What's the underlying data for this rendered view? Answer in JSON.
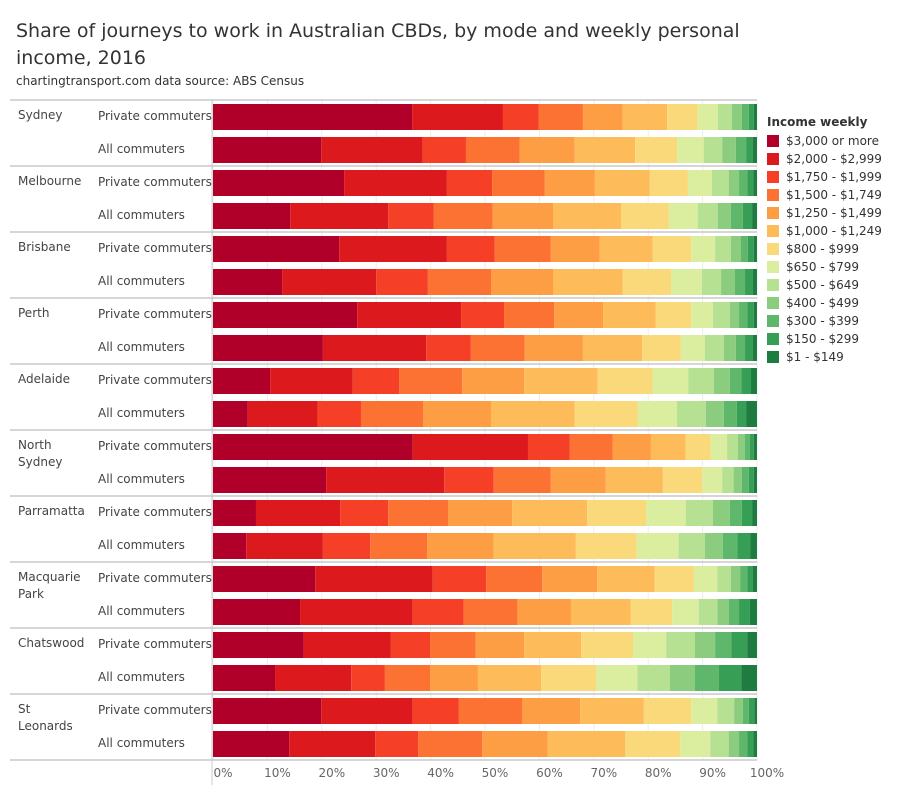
{
  "title": "Share of journeys to work in Australian CBDs, by mode and weekly personal income, 2016",
  "subtitle": "chartingtransport.com  data source: ABS Census",
  "chart_data": {
    "type": "bar",
    "orientation": "horizontal",
    "stacked": "100%",
    "xlim": [
      0,
      100
    ],
    "x_ticks": [
      "0%",
      "10%",
      "20%",
      "30%",
      "40%",
      "50%",
      "60%",
      "70%",
      "80%",
      "90%",
      "100%"
    ],
    "grid": true,
    "legend_title": "Income weekly",
    "legend_position": "right",
    "series_names": [
      "$3,000 or more",
      "$2,000 - $2,999",
      "$1,750 - $1,999",
      "$1,500 - $1,749",
      "$1,250 - $1,499",
      "$1,000 - $1,249",
      "$800 - $999",
      "$650 - $799",
      "$500 - $649",
      "$400 - $499",
      "$300 - $399",
      "$150 - $299",
      "$1 - $149"
    ],
    "colors": [
      "#b0002a",
      "#dc1a1e",
      "#f54027",
      "#fb7232",
      "#fd9d44",
      "#febb59",
      "#fad97a",
      "#dbed9e",
      "#b6e092",
      "#8ccc7e",
      "#5eb76b",
      "#379e55",
      "#1e7c40"
    ],
    "groups": [
      {
        "name": "Sydney",
        "rows": [
          {
            "label": "Private commuters",
            "values": [
              36.6,
              16.7,
              6.6,
              8.1,
              7.3,
              8.2,
              5.6,
              3.7,
              2.6,
              1.8,
              1.3,
              0.9,
              0.6
            ]
          },
          {
            "label": "All commuters",
            "values": [
              19.9,
              18.6,
              8.0,
              9.9,
              10.1,
              11.1,
              7.7,
              4.9,
              3.4,
              2.5,
              1.9,
              1.2,
              0.8
            ]
          }
        ]
      },
      {
        "name": "Melbourne",
        "rows": [
          {
            "label": "Private commuters",
            "values": [
              24.1,
              18.9,
              8.3,
              9.7,
              9.2,
              10.1,
              7.0,
              4.4,
              3.1,
              1.9,
              1.5,
              1.1,
              0.7
            ]
          },
          {
            "label": "All commuters",
            "values": [
              14.2,
              18.0,
              8.4,
              10.8,
              11.1,
              12.5,
              8.8,
              5.3,
              3.7,
              2.4,
              2.2,
              1.7,
              0.9
            ]
          }
        ]
      },
      {
        "name": "Brisbane",
        "rows": [
          {
            "label": "Private commuters",
            "values": [
              23.2,
              19.8,
              8.8,
              10.3,
              9.0,
              9.7,
              7.1,
              4.4,
              2.9,
              1.8,
              1.3,
              1.1,
              0.6
            ]
          },
          {
            "label": "All commuters",
            "values": [
              12.7,
              17.3,
              9.5,
              11.6,
              11.4,
              12.8,
              8.9,
              5.7,
              3.5,
              2.5,
              1.9,
              1.4,
              0.8
            ]
          }
        ]
      },
      {
        "name": "Perth",
        "rows": [
          {
            "label": "Private commuters",
            "values": [
              26.5,
              19.1,
              7.9,
              9.2,
              9.0,
              9.7,
              6.5,
              4.0,
              3.1,
              1.7,
              1.5,
              1.2,
              0.6
            ]
          },
          {
            "label": "All commuters",
            "values": [
              20.2,
              19.0,
              8.2,
              9.9,
              10.7,
              10.9,
              7.1,
              4.4,
              3.5,
              2.2,
              1.7,
              1.4,
              0.8
            ]
          }
        ]
      },
      {
        "name": "Adelaide",
        "rows": [
          {
            "label": "Private commuters",
            "values": [
              10.5,
              15.2,
              8.5,
              11.6,
              11.4,
              13.5,
              10.1,
              6.6,
              4.7,
              2.9,
              2.1,
              1.8,
              1.1
            ]
          },
          {
            "label": "All commuters",
            "values": [
              6.4,
              12.8,
              8.0,
              11.4,
              12.5,
              15.4,
              11.6,
              7.2,
              5.3,
              3.3,
              2.4,
              1.7,
              2.0
            ]
          }
        ]
      },
      {
        "name": "North Sydney",
        "rows": [
          {
            "label": "Private commuters",
            "values": [
              36.7,
              21.2,
              7.7,
              7.9,
              7.0,
              6.4,
              4.6,
              3.0,
              2.0,
              1.3,
              0.9,
              0.7,
              0.6
            ]
          },
          {
            "label": "All commuters",
            "values": [
              20.8,
              21.7,
              9.1,
              10.5,
              10.1,
              10.5,
              7.2,
              3.7,
              2.1,
              1.5,
              1.3,
              0.9,
              0.6
            ]
          }
        ]
      },
      {
        "name": "Parramatta",
        "rows": [
          {
            "label": "Private commuters",
            "values": [
              7.9,
              15.5,
              8.8,
              11.0,
              11.8,
              13.8,
              10.8,
              7.3,
              5.0,
              3.1,
              2.2,
              1.9,
              0.9
            ]
          },
          {
            "label": "All commuters",
            "values": [
              6.1,
              14.1,
              8.7,
              10.5,
              12.2,
              15.1,
              11.2,
              7.7,
              4.8,
              3.3,
              2.7,
              2.4,
              1.2
            ]
          }
        ]
      },
      {
        "name": "Macquarie Park",
        "rows": [
          {
            "label": "Private commuters",
            "values": [
              18.8,
              21.6,
              9.8,
              10.3,
              10.1,
              10.6,
              7.2,
              4.3,
              2.5,
              1.7,
              1.3,
              1.0,
              0.8
            ]
          },
          {
            "label": "All commuters",
            "values": [
              16.0,
              20.7,
              9.4,
              9.9,
              9.8,
              11.0,
              7.6,
              4.9,
              3.4,
              2.1,
              1.9,
              2.0,
              1.3
            ]
          }
        ]
      },
      {
        "name": "Chatswood",
        "rows": [
          {
            "label": "Private commuters",
            "values": [
              16.7,
              16.0,
              7.2,
              8.4,
              8.9,
              10.5,
              9.5,
              6.1,
              5.3,
              3.7,
              3.0,
              2.9,
              1.8
            ]
          },
          {
            "label": "All commuters",
            "values": [
              11.4,
              14.0,
              6.2,
              8.3,
              8.8,
              11.6,
              10.1,
              7.6,
              6.0,
              4.6,
              4.4,
              4.1,
              2.9
            ]
          }
        ]
      },
      {
        "name": "St Leonards",
        "rows": [
          {
            "label": "Private commuters",
            "values": [
              19.9,
              16.8,
              8.5,
              11.6,
              10.7,
              11.7,
              8.7,
              4.8,
              3.1,
              1.6,
              1.1,
              1.0,
              0.5
            ]
          },
          {
            "label": "All commuters",
            "values": [
              14.0,
              15.8,
              7.9,
              11.8,
              12.0,
              14.3,
              10.1,
              5.5,
              3.4,
              1.9,
              1.5,
              1.1,
              0.7
            ]
          }
        ]
      }
    ]
  }
}
